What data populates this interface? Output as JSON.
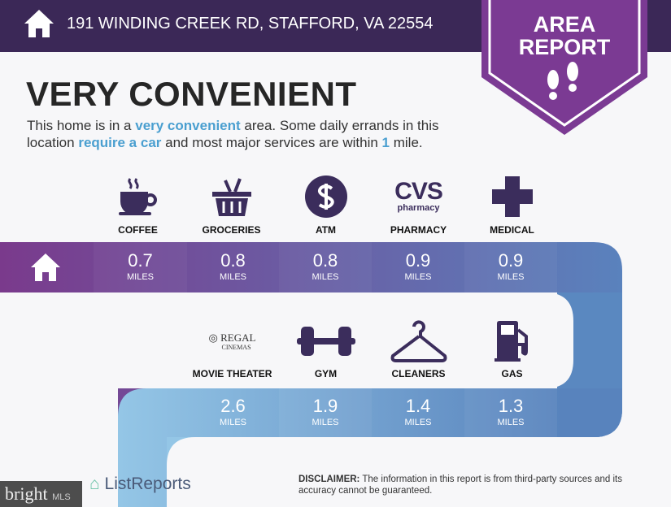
{
  "header": {
    "address": "191 WINDING CREEK RD, STAFFORD, VA 22554"
  },
  "badge": {
    "line1": "AREA",
    "line2": "REPORT"
  },
  "title": "VERY CONVENIENT",
  "intro": {
    "p1": "This home is in a ",
    "h1": "very convenient",
    "p2": " area. Some daily errands in this location ",
    "h2": "require a car",
    "p3": " and most major services are within ",
    "h3": "1",
    "p4": " mile."
  },
  "row1": [
    {
      "label": "COFFEE",
      "value": "0.7",
      "unit": "MILES",
      "icon": "coffee-cup-icon"
    },
    {
      "label": "GROCERIES",
      "value": "0.8",
      "unit": "MILES",
      "icon": "grocery-basket-icon"
    },
    {
      "label": "ATM",
      "value": "0.8",
      "unit": "MILES",
      "icon": "dollar-icon"
    },
    {
      "label": "PHARMACY",
      "value": "0.9",
      "unit": "MILES",
      "icon": "cvs-pharmacy-logo",
      "logo_text": "CVS",
      "logo_sub": "pharmacy"
    },
    {
      "label": "MEDICAL",
      "value": "0.9",
      "unit": "MILES",
      "icon": "medical-cross-icon"
    }
  ],
  "row2": [
    {
      "label": "MOVIE THEATER",
      "value": "2.6",
      "unit": "MILES",
      "icon": "regal-cinemas-logo",
      "logo_text": "REGAL",
      "logo_sub": "CINEMAS"
    },
    {
      "label": "GYM",
      "value": "1.9",
      "unit": "MILES",
      "icon": "dumbbell-icon"
    },
    {
      "label": "CLEANERS",
      "value": "1.4",
      "unit": "MILES",
      "icon": "hanger-icon"
    },
    {
      "label": "GAS",
      "value": "1.3",
      "unit": "MILES",
      "icon": "gas-pump-icon"
    }
  ],
  "disclaimer": {
    "bold": "DISCLAIMER:",
    "text": " The information in this report is from third-party sources and its accuracy cannot be guaranteed."
  },
  "footer": {
    "brand": "ListReports",
    "watermark": "bright",
    "watermark_sub": "MLS"
  },
  "colors": {
    "header": "#3b2857",
    "badge": "#7b3a93",
    "icon": "#3b2d5c",
    "highlight": "#4a9fd0"
  }
}
